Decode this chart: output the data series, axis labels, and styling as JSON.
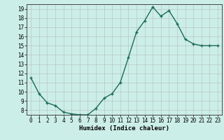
{
  "x": [
    0,
    1,
    2,
    3,
    4,
    5,
    6,
    7,
    8,
    9,
    10,
    11,
    12,
    13,
    14,
    15,
    16,
    17,
    18,
    19,
    20,
    21,
    22,
    23
  ],
  "y": [
    11.5,
    9.8,
    8.8,
    8.5,
    7.8,
    7.6,
    7.5,
    7.5,
    8.2,
    9.3,
    9.8,
    11.0,
    13.7,
    16.5,
    17.7,
    19.2,
    18.2,
    18.8,
    17.4,
    15.7,
    15.2,
    15.0,
    15.0,
    15.0
  ],
  "xlabel": "Humidex (Indice chaleur)",
  "ylim": [
    7.5,
    19.5
  ],
  "xlim": [
    -0.5,
    23.5
  ],
  "yticks": [
    8,
    9,
    10,
    11,
    12,
    13,
    14,
    15,
    16,
    17,
    18,
    19
  ],
  "xticks": [
    0,
    1,
    2,
    3,
    4,
    5,
    6,
    7,
    8,
    9,
    10,
    11,
    12,
    13,
    14,
    15,
    16,
    17,
    18,
    19,
    20,
    21,
    22,
    23
  ],
  "line_color": "#1a6b5a",
  "bg_color": "#cceee8",
  "grid_color": "#b0b0b0",
  "marker": "+",
  "marker_size": 3,
  "marker_linewidth": 1.0,
  "linewidth": 1.0,
  "tick_fontsize": 5.5,
  "xlabel_fontsize": 6.5
}
